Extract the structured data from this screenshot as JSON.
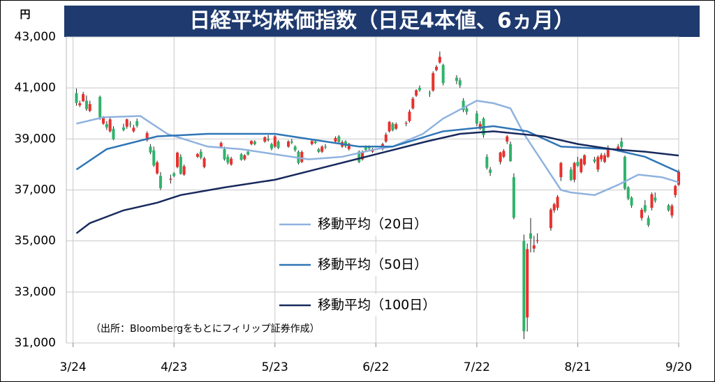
{
  "chart_data": {
    "type": "candlestick",
    "title": "日経平均株価指数（日足4本値、6ヵ月）",
    "y_unit": "円",
    "source": "（出所：Bloombergをもとにフィリップ証券作成）",
    "up_color": "#e8312c",
    "down_color": "#2fb36a",
    "xlim": [
      -2,
      180
    ],
    "xticks": [
      {
        "value": 0,
        "label": "3/24"
      },
      {
        "value": 30,
        "label": "4/23"
      },
      {
        "value": 60,
        "label": "5/23"
      },
      {
        "value": 90,
        "label": "6/22"
      },
      {
        "value": 120,
        "label": "7/22"
      },
      {
        "value": 150,
        "label": "8/21"
      },
      {
        "value": 180,
        "label": "9/20"
      }
    ],
    "ylim": [
      31000,
      43000
    ],
    "yticks": [
      {
        "value": 31000,
        "label": "31,000"
      },
      {
        "value": 33000,
        "label": "33,000"
      },
      {
        "value": 35000,
        "label": "35,000"
      },
      {
        "value": 37000,
        "label": "37,000"
      },
      {
        "value": 39000,
        "label": "39,000"
      },
      {
        "value": 41000,
        "label": "41,000"
      },
      {
        "value": 43000,
        "label": "43,000"
      }
    ],
    "grid": true,
    "x": [
      1,
      2,
      3,
      4,
      5,
      8,
      9,
      10,
      11,
      12,
      15,
      16,
      17,
      18,
      19,
      22,
      23,
      24,
      25,
      26,
      29,
      30,
      31,
      32,
      33,
      37,
      38,
      39,
      44,
      45,
      46,
      47,
      50,
      51,
      52,
      53,
      54,
      57,
      58,
      59,
      60,
      61,
      64,
      65,
      66,
      67,
      68,
      71,
      72,
      73,
      74,
      75,
      78,
      79,
      80,
      81,
      82,
      85,
      86,
      87,
      88,
      89,
      92,
      93,
      94,
      95,
      96,
      99,
      100,
      101,
      102,
      103,
      106,
      107,
      108,
      109,
      110,
      114,
      115,
      116,
      117,
      120,
      121,
      122,
      123,
      124,
      127,
      128,
      129,
      130,
      131,
      134,
      135,
      136,
      137,
      138,
      142,
      143,
      144,
      145,
      148,
      149,
      150,
      151,
      152,
      155,
      156,
      157,
      158,
      159,
      162,
      163,
      164,
      165,
      166,
      169,
      170,
      171,
      172,
      173,
      177,
      178,
      179,
      180
    ],
    "open": [
      40800,
      40320,
      40480,
      40500,
      40100,
      40650,
      39600,
      39580,
      39300,
      39400,
      39450,
      39480,
      39600,
      39300,
      39700,
      38950,
      38700,
      38550,
      37650,
      37550,
      37400,
      37650,
      37900,
      38300,
      37600,
      38300,
      38500,
      37900,
      38700,
      38600,
      38300,
      38000,
      38400,
      38200,
      38500,
      38800,
      38900,
      38900,
      39000,
      38800,
      38700,
      38900,
      38700,
      38900,
      38700,
      38500,
      38100,
      38800,
      38900,
      38600,
      38500,
      38700,
      38900,
      39100,
      38700,
      38900,
      38600,
      38500,
      38200,
      38700,
      38700,
      38500,
      38600,
      38900,
      39300,
      39600,
      39400,
      39600,
      39700,
      40200,
      40700,
      41000,
      40800,
      40900,
      41700,
      42000,
      41900,
      41400,
      41300,
      40500,
      40200,
      40000,
      39400,
      39800,
      38300,
      37800,
      38100,
      38300,
      38900,
      38800,
      37500,
      35000,
      32000,
      35300,
      34700,
      35000,
      35500,
      36200,
      36300,
      37500,
      37800,
      37400,
      38100,
      37700,
      38000,
      38200,
      37800,
      38200,
      38100,
      38300,
      38600,
      38900,
      38300,
      37100,
      36700,
      35900,
      36400,
      35900,
      36300,
      36700,
      36400,
      36000,
      36800,
      37200
    ],
    "high": [
      40980,
      40500,
      40850,
      40700,
      40500,
      40700,
      39900,
      39700,
      39850,
      39500,
      39600,
      39800,
      39700,
      39550,
      39800,
      39300,
      38800,
      38700,
      38150,
      37700,
      37600,
      37700,
      38500,
      38400,
      38000,
      38450,
      38600,
      38300,
      38900,
      38700,
      38400,
      38300,
      38450,
      38400,
      38600,
      38950,
      38950,
      39100,
      39150,
      38850,
      39150,
      38950,
      38950,
      39000,
      38750,
      38550,
      38550,
      39000,
      38950,
      38650,
      38750,
      38800,
      39100,
      39150,
      38950,
      38950,
      38850,
      38550,
      38550,
      38750,
      38750,
      38650,
      38850,
      39250,
      39700,
      39650,
      39650,
      39700,
      40150,
      40650,
      40950,
      41100,
      40900,
      41650,
      41900,
      42430,
      41950,
      41500,
      41400,
      40600,
      40300,
      40100,
      39700,
      39850,
      38400,
      37900,
      38500,
      38600,
      39150,
      38900,
      37650,
      35250,
      34900,
      35900,
      35200,
      35300,
      36300,
      36500,
      36800,
      38100,
      37900,
      38100,
      38300,
      38250,
      38400,
      38300,
      38350,
      38450,
      38450,
      38750,
      38800,
      39050,
      38350,
      37150,
      36750,
      36300,
      36600,
      36000,
      36900,
      36900,
      36450,
      36450,
      37200,
      37800
    ],
    "low": [
      40300,
      40250,
      40450,
      40100,
      40050,
      39750,
      39550,
      39350,
      39250,
      38950,
      39300,
      39400,
      39450,
      39250,
      39450,
      38900,
      38400,
      37900,
      37600,
      37000,
      37250,
      37500,
      37850,
      37600,
      37550,
      38250,
      38200,
      37850,
      38650,
      38150,
      38000,
      37950,
      38150,
      38150,
      38350,
      38750,
      38750,
      38850,
      38900,
      38550,
      38650,
      38600,
      38650,
      38800,
      38500,
      38000,
      38050,
      38750,
      38800,
      38450,
      38450,
      38600,
      38850,
      38850,
      38650,
      38650,
      38550,
      38050,
      38150,
      38500,
      38550,
      38450,
      38550,
      38850,
      39250,
      39300,
      39350,
      39500,
      39650,
      40150,
      40650,
      40850,
      40650,
      40850,
      41650,
      41950,
      41100,
      41150,
      41000,
      40050,
      39950,
      39500,
      39350,
      39050,
      37800,
      37550,
      38000,
      38250,
      38800,
      38100,
      35850,
      31150,
      31450,
      34550,
      34550,
      34900,
      35400,
      36100,
      36200,
      37350,
      37350,
      37300,
      37900,
      37650,
      37950,
      38050,
      37700,
      38100,
      38050,
      38250,
      38500,
      38600,
      37000,
      36600,
      36300,
      35800,
      36100,
      35550,
      36200,
      36500,
      36150,
      35900,
      36700,
      37150
    ],
    "close": [
      40410,
      40400,
      40760,
      40170,
      40370,
      39800,
      39840,
      39450,
      39770,
      38990,
      39350,
      39770,
      39580,
      39440,
      39520,
      39230,
      38470,
      37960,
      38080,
      37070,
      37440,
      37550,
      38460,
      37630,
      37930,
      38410,
      38270,
      38240,
      38840,
      38200,
      38070,
      38230,
      38180,
      38360,
      38390,
      38920,
      38790,
      39070,
      38950,
      38620,
      39100,
      38650,
      38900,
      38860,
      38560,
      38050,
      38490,
      38920,
      38840,
      38490,
      38700,
      38680,
      39040,
      38880,
      38880,
      38720,
      38810,
      38100,
      38480,
      38570,
      38630,
      38600,
      38800,
      39170,
      39670,
      39340,
      39580,
      39630,
      40070,
      40580,
      40910,
      40910,
      40780,
      41580,
      41830,
      42220,
      41190,
      41280,
      41100,
      40130,
      40060,
      39600,
      39590,
      39150,
      37870,
      37670,
      38470,
      38530,
      39100,
      38130,
      35910,
      31460,
      34680,
      35090,
      34830,
      35030,
      36230,
      36440,
      36730,
      38060,
      37390,
      38060,
      37950,
      38210,
      38360,
      38110,
      38290,
      38370,
      38360,
      38650,
      38700,
      38690,
      37050,
      36660,
      36390,
      36220,
      36160,
      35620,
      36830,
      36580,
      36200,
      36380,
      37160,
      37720
    ],
    "series": [
      {
        "name": "移動平均（20日）",
        "color": "#8fb2df",
        "x": [
          1,
          9,
          20,
          28,
          40,
          50,
          70,
          80,
          90,
          95,
          104,
          110,
          120,
          125,
          130,
          134,
          140,
          145,
          148,
          155,
          162,
          168,
          175,
          180
        ],
        "values": [
          39600,
          39850,
          39900,
          39200,
          38700,
          38600,
          38200,
          38300,
          38600,
          38700,
          39200,
          39800,
          40500,
          40400,
          40200,
          39200,
          38000,
          37000,
          36900,
          36800,
          37200,
          37600,
          37500,
          37300
        ]
      },
      {
        "name": "移動平均（50日）",
        "color": "#2e75b6",
        "x": [
          1,
          10,
          25,
          40,
          60,
          70,
          85,
          95,
          110,
          125,
          135,
          145,
          160,
          170,
          180
        ],
        "values": [
          37800,
          38600,
          39100,
          39200,
          39200,
          39000,
          38700,
          38700,
          39300,
          39500,
          39300,
          38700,
          38600,
          38300,
          37700
        ]
      },
      {
        "name": "移動平均（100日）",
        "color": "#17295c",
        "x": [
          1,
          5,
          15,
          25,
          32,
          45,
          60,
          75,
          90,
          105,
          115,
          125,
          140,
          150,
          160,
          170,
          180
        ],
        "values": [
          35300,
          35700,
          36200,
          36500,
          36800,
          37100,
          37400,
          37900,
          38400,
          38900,
          39200,
          39300,
          39100,
          38800,
          38600,
          38500,
          38350
        ]
      }
    ]
  }
}
